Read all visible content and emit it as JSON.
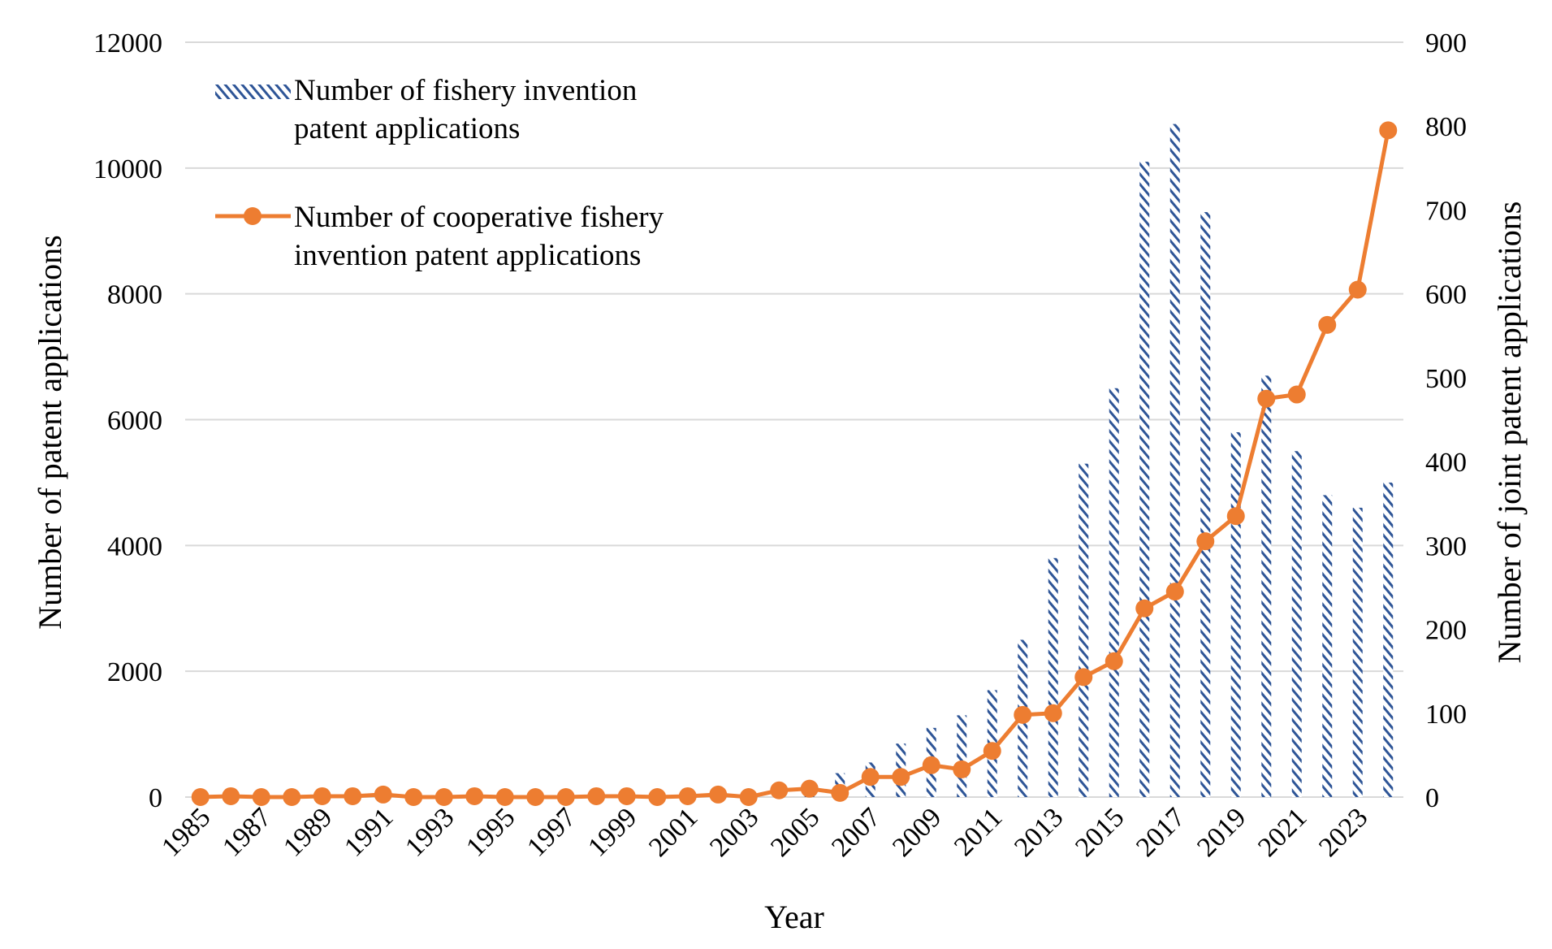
{
  "chart_data": {
    "type": "bar+line",
    "title": "",
    "xlabel": "Year",
    "ylabel_left": "Number of patent applications",
    "ylabel_right": "Number of joint patent applications",
    "ylim_left": [
      0,
      12000
    ],
    "ylim_right": [
      0,
      900
    ],
    "yticks_left": [
      0,
      2000,
      4000,
      6000,
      8000,
      10000,
      12000
    ],
    "yticks_right": [
      0,
      100,
      200,
      300,
      400,
      500,
      600,
      700,
      800,
      900
    ],
    "grid": true,
    "legend_position": "top-left",
    "x": [
      1985,
      1986,
      1987,
      1988,
      1989,
      1990,
      1991,
      1992,
      1993,
      1994,
      1995,
      1996,
      1997,
      1998,
      1999,
      2000,
      2001,
      2002,
      2003,
      2004,
      2005,
      2006,
      2007,
      2008,
      2009,
      2010,
      2011,
      2012,
      2013,
      2014,
      2015,
      2016,
      2017,
      2018,
      2019,
      2020,
      2021,
      2022,
      2023,
      2024
    ],
    "x_tick_labels": [
      "1985",
      "1987",
      "1989",
      "1991",
      "1993",
      "1995",
      "1997",
      "1999",
      "2001",
      "2003",
      "2005",
      "2007",
      "2009",
      "2011",
      "2013",
      "2015",
      "2017",
      "2019",
      "2021",
      "2023"
    ],
    "series": [
      {
        "name": "Number of fishery invention patent applications",
        "type": "bar",
        "axis": "left",
        "color": "#2E5597",
        "values": [
          5,
          5,
          5,
          5,
          5,
          5,
          5,
          5,
          5,
          5,
          5,
          5,
          5,
          5,
          5,
          5,
          10,
          20,
          50,
          100,
          200,
          380,
          550,
          850,
          1100,
          1300,
          1700,
          2500,
          3800,
          5300,
          6500,
          10100,
          10700,
          9300,
          5800,
          6700,
          5500,
          4800,
          4600,
          5000
        ]
      },
      {
        "name": "Number of cooperative fishery invention patent applications",
        "type": "line",
        "axis": "right",
        "color": "#ED7D31",
        "values": [
          0,
          1,
          0,
          0,
          1,
          1,
          3,
          0,
          0,
          1,
          0,
          0,
          0,
          1,
          1,
          0,
          1,
          3,
          0,
          8,
          10,
          5,
          24,
          24,
          38,
          33,
          55,
          98,
          100,
          143,
          162,
          225,
          245,
          305,
          335,
          475,
          480,
          563,
          605,
          795
        ]
      }
    ]
  }
}
